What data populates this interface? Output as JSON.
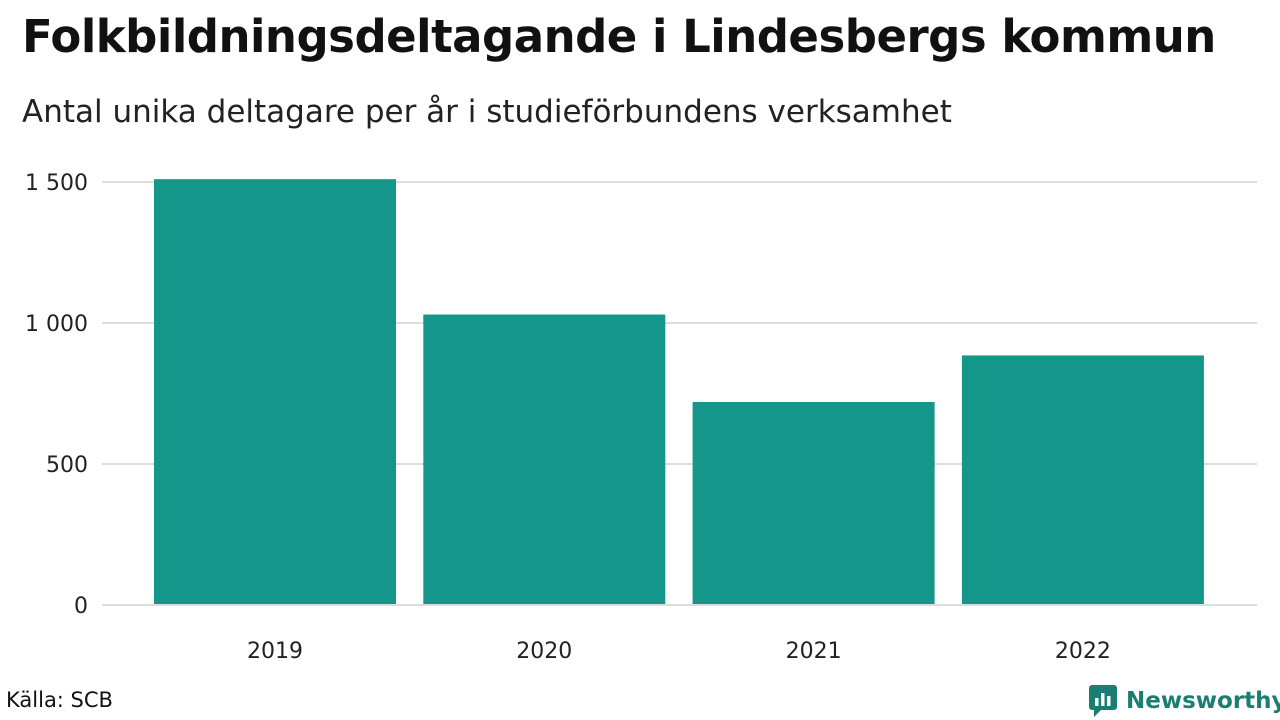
{
  "header": {
    "title": "Folkbildningsdeltagande i Lindesbergs kommun",
    "subtitle": "Antal unika deltagare per år i studieförbundens verksamhet"
  },
  "footer": {
    "source": "Källa: SCB",
    "brand": "Newsworthy"
  },
  "colors": {
    "bar": "#15968a",
    "grid": "#dddddd",
    "brand": "#1a7e72"
  },
  "chart_data": {
    "type": "bar",
    "categories": [
      "2019",
      "2020",
      "2021",
      "2022"
    ],
    "values": [
      1510,
      1030,
      720,
      885
    ],
    "title": "Folkbildningsdeltagande i Lindesbergs kommun",
    "subtitle": "Antal unika deltagare per år i studieförbundens verksamhet",
    "xlabel": "",
    "ylabel": "",
    "ylim": [
      0,
      1500
    ],
    "yticks": [
      0,
      500,
      1000,
      1500
    ],
    "ytick_labels": [
      "0",
      "500",
      "1 000",
      "1 500"
    ],
    "grid": true,
    "legend": "none"
  }
}
